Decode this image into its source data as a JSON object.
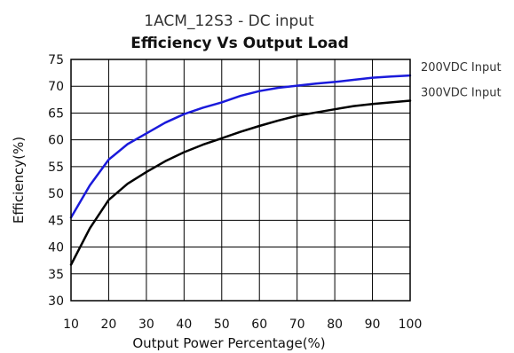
{
  "chart_data": {
    "type": "line",
    "title": "1ACM_12S3 - DC input",
    "subtitle": "Efficiency Vs Output Load",
    "xlabel": "Output Power Percentage(%)",
    "ylabel": "Efficiency(%)",
    "xlim": [
      10,
      100
    ],
    "ylim": [
      30,
      75
    ],
    "xticks": [
      10,
      20,
      30,
      40,
      50,
      60,
      70,
      80,
      90,
      100
    ],
    "yticks": [
      30,
      35,
      40,
      45,
      50,
      55,
      60,
      65,
      70,
      75
    ],
    "grid": true,
    "legend": "right",
    "series": [
      {
        "name": "200VDC Input",
        "color": "#1a1adb",
        "x": [
          10,
          15,
          20,
          25,
          30,
          35,
          40,
          45,
          50,
          55,
          60,
          65,
          70,
          75,
          80,
          85,
          90,
          95,
          100
        ],
        "y": [
          45.5,
          51.5,
          56.3,
          59.2,
          61.2,
          63.2,
          64.8,
          66.0,
          67.0,
          68.2,
          69.1,
          69.7,
          70.1,
          70.5,
          70.8,
          71.2,
          71.6,
          71.8,
          72.0
        ]
      },
      {
        "name": "300VDC Input",
        "color": "#000000",
        "x": [
          10,
          15,
          20,
          25,
          30,
          35,
          40,
          45,
          50,
          55,
          60,
          65,
          70,
          75,
          80,
          85,
          90,
          95,
          100
        ],
        "y": [
          36.7,
          43.5,
          48.8,
          51.8,
          54.0,
          56.0,
          57.7,
          59.1,
          60.3,
          61.5,
          62.6,
          63.6,
          64.5,
          65.1,
          65.7,
          66.3,
          66.7,
          67.0,
          67.3
        ]
      }
    ]
  }
}
